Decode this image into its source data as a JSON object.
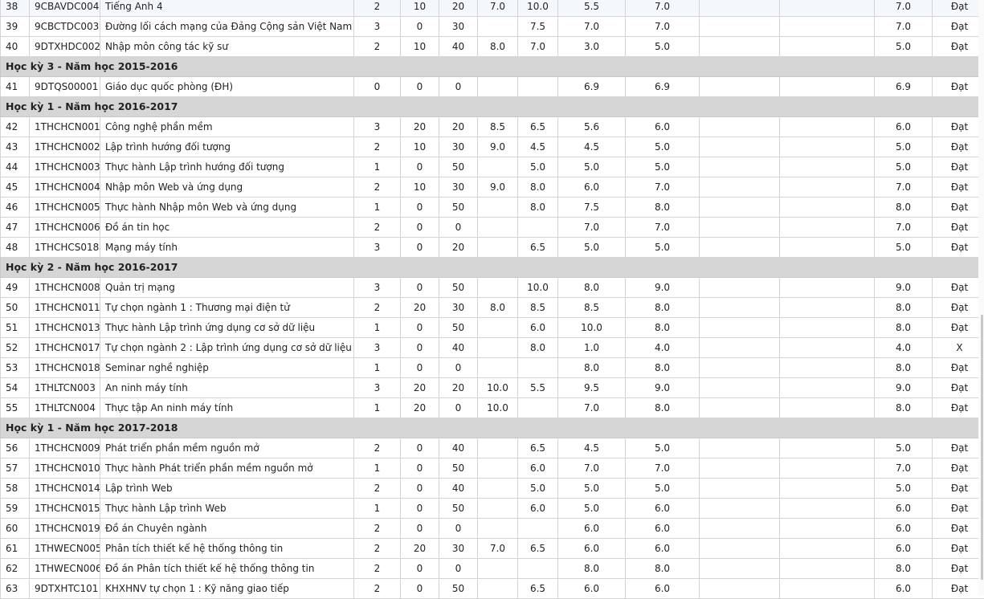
{
  "rows": [
    {
      "type": "course",
      "stt": "38",
      "code": "9CBAVDC004",
      "name": "Tiếng Anh 4",
      "credits": "2",
      "c1": "10",
      "c2": "20",
      "s1": "7.0",
      "s2": "10.0",
      "s3": "5.5",
      "s4": "7.0",
      "s5": "",
      "s6": "",
      "final": "7.0",
      "result": "Đạt"
    },
    {
      "type": "course",
      "stt": "39",
      "code": "9CBCTDC003",
      "name": "Đường lối cách mạng của Đảng Cộng sản Việt Nam",
      "credits": "3",
      "c1": "0",
      "c2": "30",
      "s1": "",
      "s2": "7.5",
      "s3": "7.0",
      "s4": "7.0",
      "s5": "",
      "s6": "",
      "final": "7.0",
      "result": "Đạt"
    },
    {
      "type": "course",
      "stt": "40",
      "code": "9DTXHDC002",
      "name": "Nhập môn công tác kỹ sư",
      "credits": "2",
      "c1": "10",
      "c2": "40",
      "s1": "8.0",
      "s2": "7.0",
      "s3": "3.0",
      "s4": "5.0",
      "s5": "",
      "s6": "",
      "final": "5.0",
      "result": "Đạt"
    },
    {
      "type": "semester",
      "label": "Học kỳ 3 - Năm học 2015-2016"
    },
    {
      "type": "course",
      "stt": "41",
      "code": "9DTQS00001",
      "name": "Giáo dục quốc phòng (ĐH)",
      "credits": "0",
      "c1": "0",
      "c2": "0",
      "s1": "",
      "s2": "",
      "s3": "6.9",
      "s4": "6.9",
      "s5": "",
      "s6": "",
      "final": "6.9",
      "result": "Đạt"
    },
    {
      "type": "semester",
      "label": "Học kỳ 1 - Năm học 2016-2017"
    },
    {
      "type": "course",
      "stt": "42",
      "code": "1THCHCN001",
      "name": "Công nghệ phần mềm",
      "credits": "3",
      "c1": "20",
      "c2": "20",
      "s1": "8.5",
      "s2": "6.5",
      "s3": "5.6",
      "s4": "6.0",
      "s5": "",
      "s6": "",
      "final": "6.0",
      "result": "Đạt"
    },
    {
      "type": "course",
      "stt": "43",
      "code": "1THCHCN002",
      "name": "Lập trình hướng đối tượng",
      "credits": "2",
      "c1": "10",
      "c2": "30",
      "s1": "9.0",
      "s2": "4.5",
      "s3": "4.5",
      "s4": "5.0",
      "s5": "",
      "s6": "",
      "final": "5.0",
      "result": "Đạt"
    },
    {
      "type": "course",
      "stt": "44",
      "code": "1THCHCN003",
      "name": "Thực hành Lập trình hướng đối tượng",
      "credits": "1",
      "c1": "0",
      "c2": "50",
      "s1": "",
      "s2": "5.0",
      "s3": "5.0",
      "s4": "5.0",
      "s5": "",
      "s6": "",
      "final": "5.0",
      "result": "Đạt"
    },
    {
      "type": "course",
      "stt": "45",
      "code": "1THCHCN004",
      "name": "Nhập môn Web và ứng dụng",
      "credits": "2",
      "c1": "10",
      "c2": "30",
      "s1": "9.0",
      "s2": "8.0",
      "s3": "6.0",
      "s4": "7.0",
      "s5": "",
      "s6": "",
      "final": "7.0",
      "result": "Đạt"
    },
    {
      "type": "course",
      "stt": "46",
      "code": "1THCHCN005",
      "name": "Thực hành Nhập môn Web và ứng dụng",
      "credits": "1",
      "c1": "0",
      "c2": "50",
      "s1": "",
      "s2": "8.0",
      "s3": "7.5",
      "s4": "8.0",
      "s5": "",
      "s6": "",
      "final": "8.0",
      "result": "Đạt"
    },
    {
      "type": "course",
      "stt": "47",
      "code": "1THCHCN006",
      "name": "Đồ án tin học",
      "credits": "2",
      "c1": "0",
      "c2": "0",
      "s1": "",
      "s2": "",
      "s3": "7.0",
      "s4": "7.0",
      "s5": "",
      "s6": "",
      "final": "7.0",
      "result": "Đạt"
    },
    {
      "type": "course",
      "stt": "48",
      "code": "1THCHCS018",
      "name": "Mạng máy tính",
      "credits": "3",
      "c1": "0",
      "c2": "20",
      "s1": "",
      "s2": "6.5",
      "s3": "5.0",
      "s4": "5.0",
      "s5": "",
      "s6": "",
      "final": "5.0",
      "result": "Đạt"
    },
    {
      "type": "semester",
      "label": "Học kỳ 2 - Năm học 2016-2017"
    },
    {
      "type": "course",
      "stt": "49",
      "code": "1THCHCN008",
      "name": "Quản trị mạng",
      "credits": "3",
      "c1": "0",
      "c2": "50",
      "s1": "",
      "s2": "10.0",
      "s3": "8.0",
      "s4": "9.0",
      "s5": "",
      "s6": "",
      "final": "9.0",
      "result": "Đạt"
    },
    {
      "type": "course",
      "stt": "50",
      "code": "1THCHCN011",
      "name": "Tự chọn ngành 1 : Thương mại điện tử",
      "credits": "2",
      "c1": "20",
      "c2": "30",
      "s1": "8.0",
      "s2": "8.5",
      "s3": "8.5",
      "s4": "8.0",
      "s5": "",
      "s6": "",
      "final": "8.0",
      "result": "Đạt"
    },
    {
      "type": "course",
      "stt": "51",
      "code": "1THCHCN013",
      "name": "Thực hành Lập trình ứng dụng cơ sở dữ liệu",
      "credits": "1",
      "c1": "0",
      "c2": "50",
      "s1": "",
      "s2": "6.0",
      "s3": "10.0",
      "s4": "8.0",
      "s5": "",
      "s6": "",
      "final": "8.0",
      "result": "Đạt"
    },
    {
      "type": "course",
      "stt": "52",
      "code": "1THCHCN017",
      "name": "Tự chọn ngành 2 : Lập trình ứng dụng cơ sở dữ liệu",
      "credits": "3",
      "c1": "0",
      "c2": "40",
      "s1": "",
      "s2": "8.0",
      "s3": "1.0",
      "s4": "4.0",
      "s5": "",
      "s6": "",
      "final": "4.0",
      "result": "X"
    },
    {
      "type": "course",
      "stt": "53",
      "code": "1THCHCN018",
      "name": "Seminar nghề nghiệp",
      "credits": "1",
      "c1": "0",
      "c2": "0",
      "s1": "",
      "s2": "",
      "s3": "8.0",
      "s4": "8.0",
      "s5": "",
      "s6": "",
      "final": "8.0",
      "result": "Đạt"
    },
    {
      "type": "course",
      "stt": "54",
      "code": "1THLTCN003",
      "name": "An ninh máy tính",
      "credits": "3",
      "c1": "20",
      "c2": "20",
      "s1": "10.0",
      "s2": "5.5",
      "s3": "9.5",
      "s4": "9.0",
      "s5": "",
      "s6": "",
      "final": "9.0",
      "result": "Đạt"
    },
    {
      "type": "course",
      "stt": "55",
      "code": "1THLTCN004",
      "name": "Thực tập An ninh máy tính",
      "credits": "1",
      "c1": "20",
      "c2": "0",
      "s1": "10.0",
      "s2": "",
      "s3": "7.0",
      "s4": "8.0",
      "s5": "",
      "s6": "",
      "final": "8.0",
      "result": "Đạt"
    },
    {
      "type": "semester",
      "label": "Học kỳ 1 - Năm học 2017-2018"
    },
    {
      "type": "course",
      "stt": "56",
      "code": "1THCHCN009",
      "name": "Phát triển phần mềm nguồn mở",
      "credits": "2",
      "c1": "0",
      "c2": "40",
      "s1": "",
      "s2": "6.5",
      "s3": "4.5",
      "s4": "5.0",
      "s5": "",
      "s6": "",
      "final": "5.0",
      "result": "Đạt"
    },
    {
      "type": "course",
      "stt": "57",
      "code": "1THCHCN010",
      "name": "Thực hành Phát triển phần mềm nguồn mở",
      "credits": "1",
      "c1": "0",
      "c2": "50",
      "s1": "",
      "s2": "6.0",
      "s3": "7.0",
      "s4": "7.0",
      "s5": "",
      "s6": "",
      "final": "7.0",
      "result": "Đạt"
    },
    {
      "type": "course",
      "stt": "58",
      "code": "1THCHCN014",
      "name": "Lập trình Web",
      "credits": "2",
      "c1": "0",
      "c2": "40",
      "s1": "",
      "s2": "5.0",
      "s3": "5.0",
      "s4": "5.0",
      "s5": "",
      "s6": "",
      "final": "5.0",
      "result": "Đạt"
    },
    {
      "type": "course",
      "stt": "59",
      "code": "1THCHCN015",
      "name": "Thực hành Lập trình Web",
      "credits": "1",
      "c1": "0",
      "c2": "50",
      "s1": "",
      "s2": "6.0",
      "s3": "5.0",
      "s4": "6.0",
      "s5": "",
      "s6": "",
      "final": "6.0",
      "result": "Đạt"
    },
    {
      "type": "course",
      "stt": "60",
      "code": "1THCHCN019",
      "name": "Đồ án Chuyên ngành",
      "credits": "2",
      "c1": "0",
      "c2": "0",
      "s1": "",
      "s2": "",
      "s3": "6.0",
      "s4": "6.0",
      "s5": "",
      "s6": "",
      "final": "6.0",
      "result": "Đạt"
    },
    {
      "type": "course",
      "stt": "61",
      "code": "1THWECN005",
      "name": "Phân tích thiết kế hệ thống thông tin",
      "credits": "2",
      "c1": "20",
      "c2": "30",
      "s1": "7.0",
      "s2": "6.5",
      "s3": "6.0",
      "s4": "6.0",
      "s5": "",
      "s6": "",
      "final": "6.0",
      "result": "Đạt"
    },
    {
      "type": "course",
      "stt": "62",
      "code": "1THWECN006",
      "name": "Đồ án Phân tích thiết kế hệ thống thông tin",
      "credits": "2",
      "c1": "0",
      "c2": "0",
      "s1": "",
      "s2": "",
      "s3": "8.0",
      "s4": "8.0",
      "s5": "",
      "s6": "",
      "final": "8.0",
      "result": "Đạt"
    },
    {
      "type": "course",
      "stt": "63",
      "code": "9DTXHTC101",
      "name": "KHXHNV tự chọn 1 : Kỹ năng giao tiếp",
      "credits": "2",
      "c1": "0",
      "c2": "50",
      "s1": "",
      "s2": "6.5",
      "s3": "6.0",
      "s4": "6.0",
      "s5": "",
      "s6": "",
      "final": "6.0",
      "result": "Đạt"
    }
  ]
}
